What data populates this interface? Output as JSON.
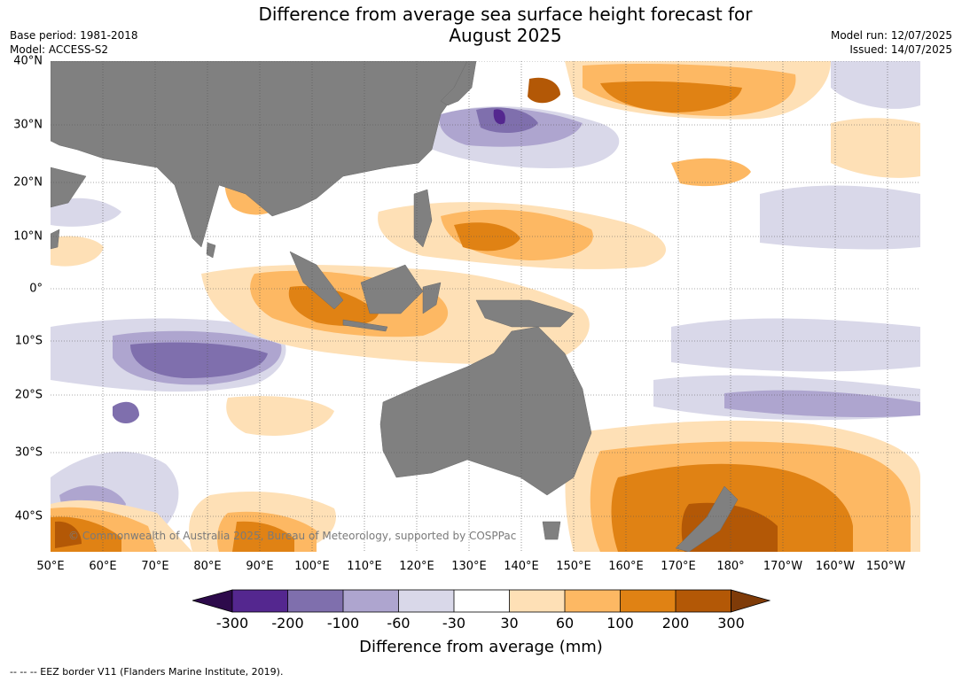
{
  "title": {
    "line1": "Difference from average sea surface height forecast for",
    "line2": "August 2025"
  },
  "meta": {
    "base_period": "Base period: 1981-2018",
    "model": "Model: ACCESS-S2",
    "model_run": "Model run: 12/07/2025",
    "issued": "Issued: 14/07/2025"
  },
  "map": {
    "lat_labels": [
      "40°N",
      "30°N",
      "20°N",
      "10°N",
      "0°",
      "10°S",
      "20°S",
      "30°S",
      "40°S"
    ],
    "lon_labels": [
      "50°E",
      "60°E",
      "70°E",
      "80°E",
      "90°E",
      "100°E",
      "110°E",
      "120°E",
      "130°E",
      "140°E",
      "150°E",
      "160°E",
      "170°E",
      "180°",
      "170°W",
      "160°W",
      "150°W"
    ],
    "copyright": "© Commonwealth of Australia 2025, Bureau of Meteorology, supported by COSPPac",
    "land_color": "#808080"
  },
  "legend": {
    "ticks": [
      "-300",
      "-200",
      "-100",
      "-60",
      "-30",
      "30",
      "60",
      "100",
      "200",
      "300"
    ],
    "colors": [
      "#2d0a4b",
      "#54278f",
      "#7f6fad",
      "#aea5cf",
      "#d9d8e9",
      "#ffffff",
      "#fee0b6",
      "#fdb863",
      "#e08214",
      "#b35806",
      "#7f3b08"
    ],
    "title": "Difference from average (mm)"
  },
  "footnote": "--  --  -- EEZ border V11 (Flanders Marine Institute, 2019)."
}
